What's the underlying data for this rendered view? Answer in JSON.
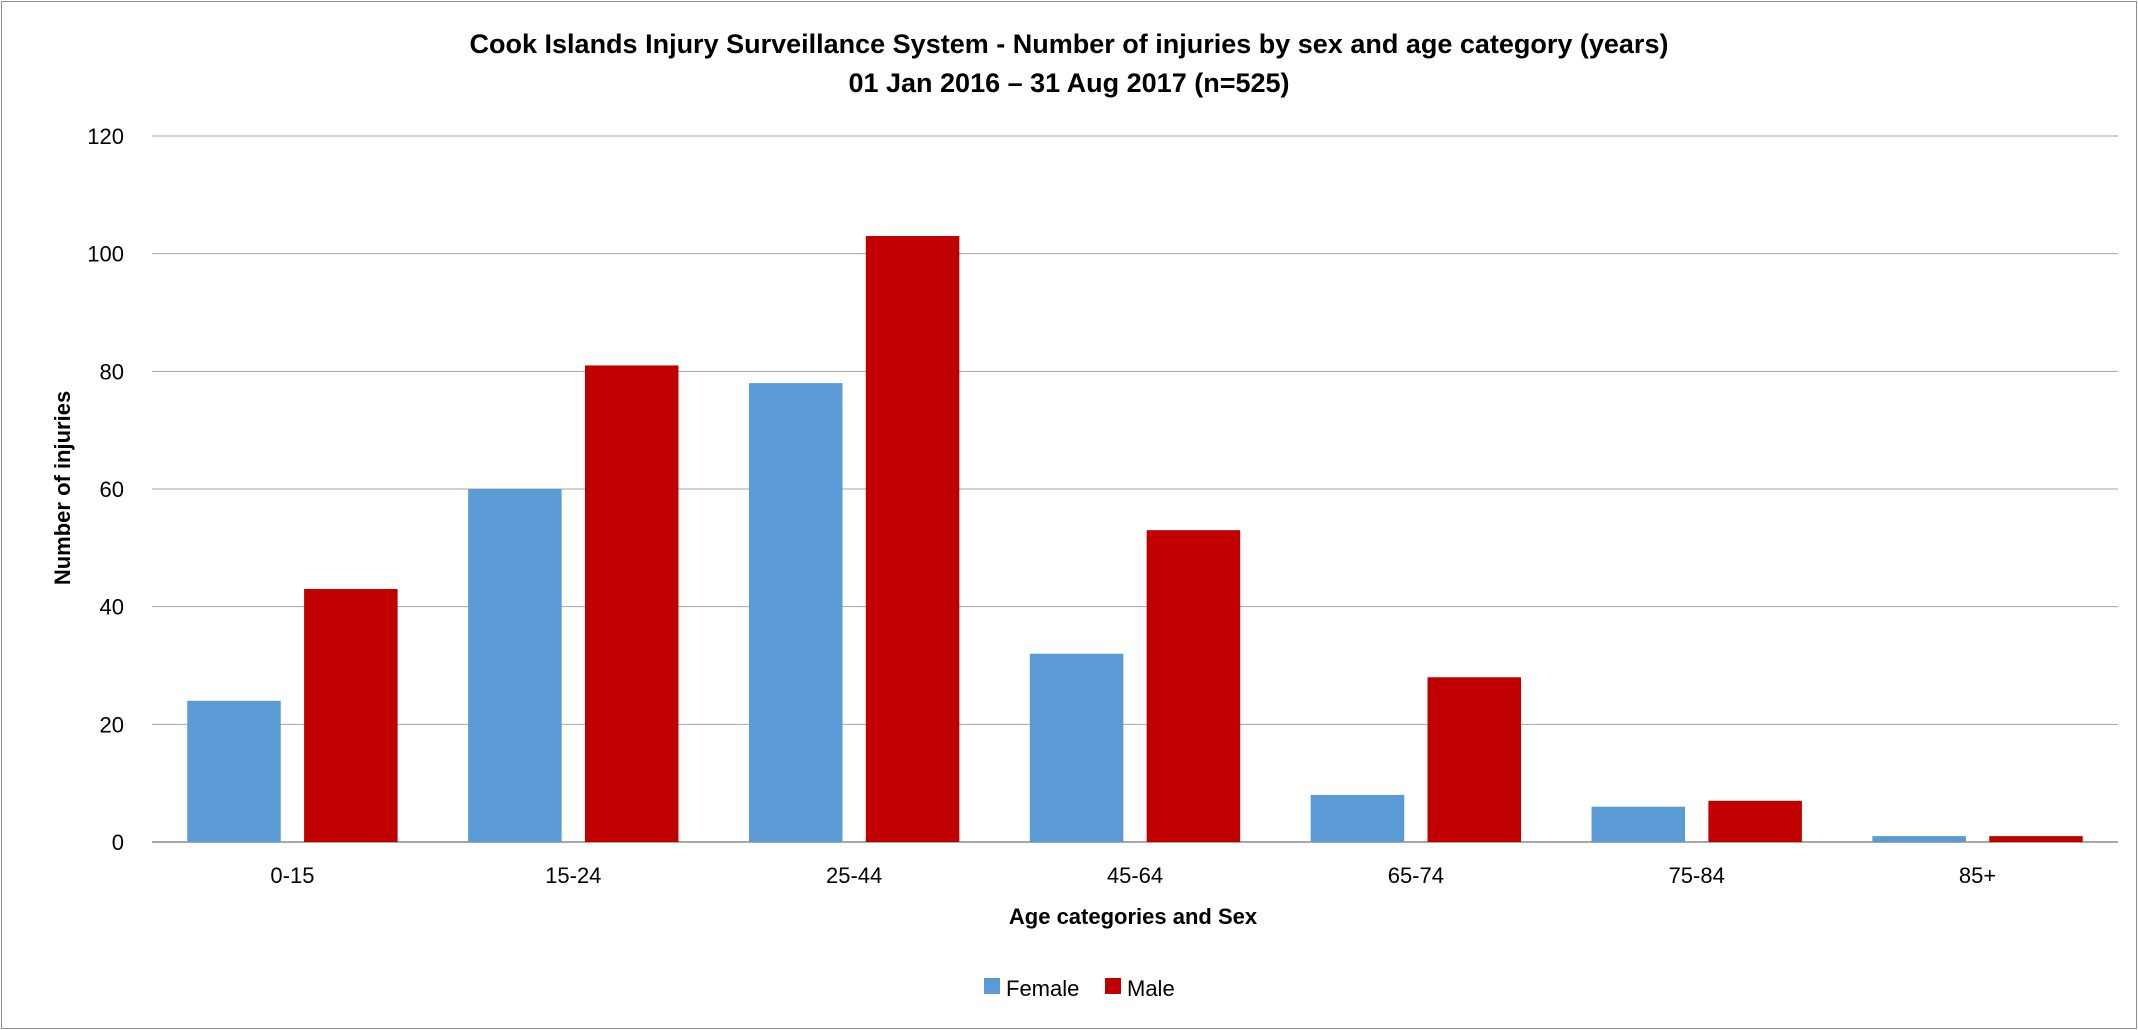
{
  "chart_data": {
    "type": "bar",
    "title": "Cook Islands Injury Surveillance System - Number of injuries by sex and age category (years)",
    "subtitle": "01 Jan 2016 – 31 Aug 2017 (n=525)",
    "xlabel": "Age categories and Sex",
    "ylabel": "Number of injuries",
    "categories": [
      "0-15",
      "15-24",
      "25-44",
      "45-64",
      "65-74",
      "75-84",
      "85+"
    ],
    "series": [
      {
        "name": "Female",
        "color": "#5b9bd5",
        "values": [
          24,
          60,
          78,
          32,
          8,
          6,
          1
        ]
      },
      {
        "name": "Male",
        "color": "#c00000",
        "values": [
          43,
          81,
          103,
          53,
          28,
          7,
          1
        ]
      }
    ],
    "ylim": [
      0,
      120
    ],
    "yticks": [
      "0",
      "20",
      "40",
      "60",
      "80",
      "100",
      "120"
    ],
    "grid": true,
    "legend": "bottom"
  }
}
